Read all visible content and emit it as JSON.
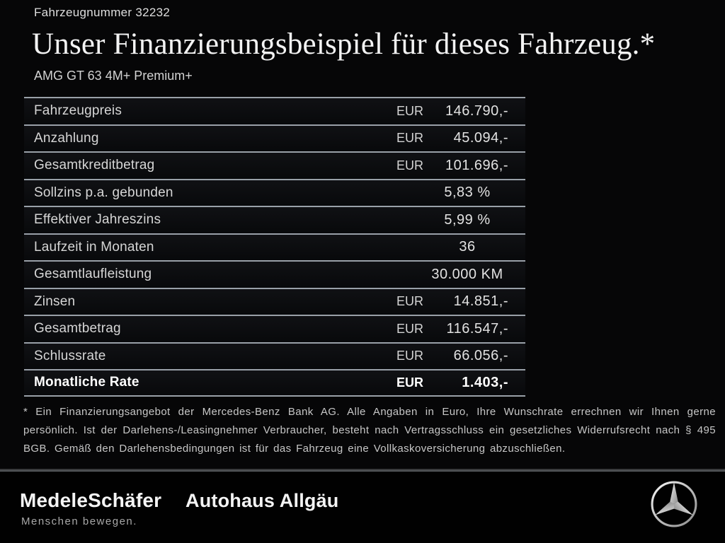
{
  "header": {
    "vehicle_number": "Fahrzeugnummer 32232",
    "title": "Unser Finanzierungsbeispiel für dieses Fahrzeug.*",
    "subtitle": "AMG GT 63 4M+ Premium+"
  },
  "table": {
    "rows": [
      {
        "label": "Fahrzeugpreis",
        "currency": "EUR",
        "value": "146.790,-",
        "bold": false
      },
      {
        "label": "Anzahlung",
        "currency": "EUR",
        "value": "45.094,-",
        "bold": false
      },
      {
        "label": "Gesamtkreditbetrag",
        "currency": "EUR",
        "value": "101.696,-",
        "bold": false
      },
      {
        "label": "Sollzins p.a. gebunden",
        "currency": "",
        "value": "5,83 %",
        "bold": false
      },
      {
        "label": "Effektiver Jahreszins",
        "currency": "",
        "value": "5,99 %",
        "bold": false
      },
      {
        "label": "Laufzeit in Monaten",
        "currency": "",
        "value": "36",
        "bold": false
      },
      {
        "label": "Gesamtlaufleistung",
        "currency": "",
        "value": "30.000 KM",
        "bold": false
      },
      {
        "label": "Zinsen",
        "currency": "EUR",
        "value": "14.851,-",
        "bold": false
      },
      {
        "label": "Gesamtbetrag",
        "currency": "EUR",
        "value": "116.547,-",
        "bold": false
      },
      {
        "label": "Schlussrate",
        "currency": "EUR",
        "value": "66.056,-",
        "bold": false
      },
      {
        "label": "Monatliche Rate",
        "currency": "EUR",
        "value": "1.403,-",
        "bold": true
      }
    ]
  },
  "footnote": "* Ein Finanzierungsangebot der Mercedes-Benz Bank AG. Alle Angaben in Euro, Ihre Wunschrate errechnen wir Ihnen gerne persönlich. Ist der Darlehens-/Leasingnehmer Verbraucher, besteht nach Vertragsschluss ein gesetzliches Widerrufsrecht nach § 495 BGB. Gemäß den Darlehensbedingungen ist für das Fahrzeug eine Vollkaskoversicherung abzuschließen.",
  "footer": {
    "dealer_name": "MedeleSchäfer",
    "dealer_tagline": "Menschen bewegen.",
    "dealer_name_2": "Autohaus Allgäu",
    "brand_logo_icon": "mercedes-star-icon"
  },
  "colors": {
    "background": "#060607",
    "footer_background": "#010101",
    "row_separator": "#99a0a8",
    "footer_separator": "#606468",
    "text_primary": "#f3f3f3",
    "text_secondary": "#c7c7c7"
  }
}
